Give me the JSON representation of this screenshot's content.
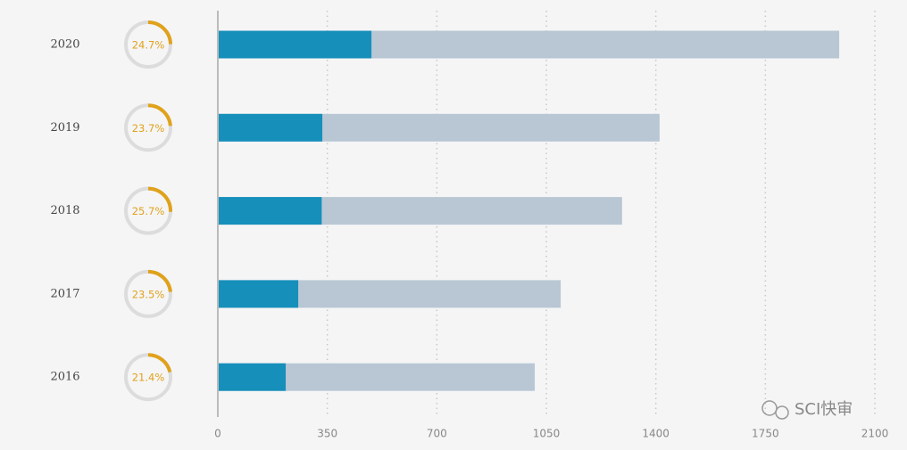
{
  "chart_data": {
    "type": "bar",
    "orientation": "horizontal",
    "categories": [
      "2020",
      "2019",
      "2018",
      "2017",
      "2016"
    ],
    "series": [
      {
        "color": "#b8c7d3",
        "values": [
          1986,
          1412,
          1292,
          1096,
          1013
        ]
      },
      {
        "color": "#168fbb",
        "values": [
          491,
          334,
          332,
          257,
          217
        ]
      }
    ],
    "share": {
      "color": "#e0a21b",
      "track_color": "#dcdcdc",
      "values": [
        24.7,
        23.7,
        25.7,
        23.5,
        21.4
      ],
      "value_labels": [
        "24.7%",
        "23.7%",
        "25.7%",
        "23.5%",
        "21.4%"
      ]
    },
    "xlim": [
      0,
      2100
    ],
    "xticks": [
      0,
      350,
      700,
      1050,
      1400,
      1750,
      2100
    ],
    "grid": true,
    "watermark": "SCI快审"
  }
}
